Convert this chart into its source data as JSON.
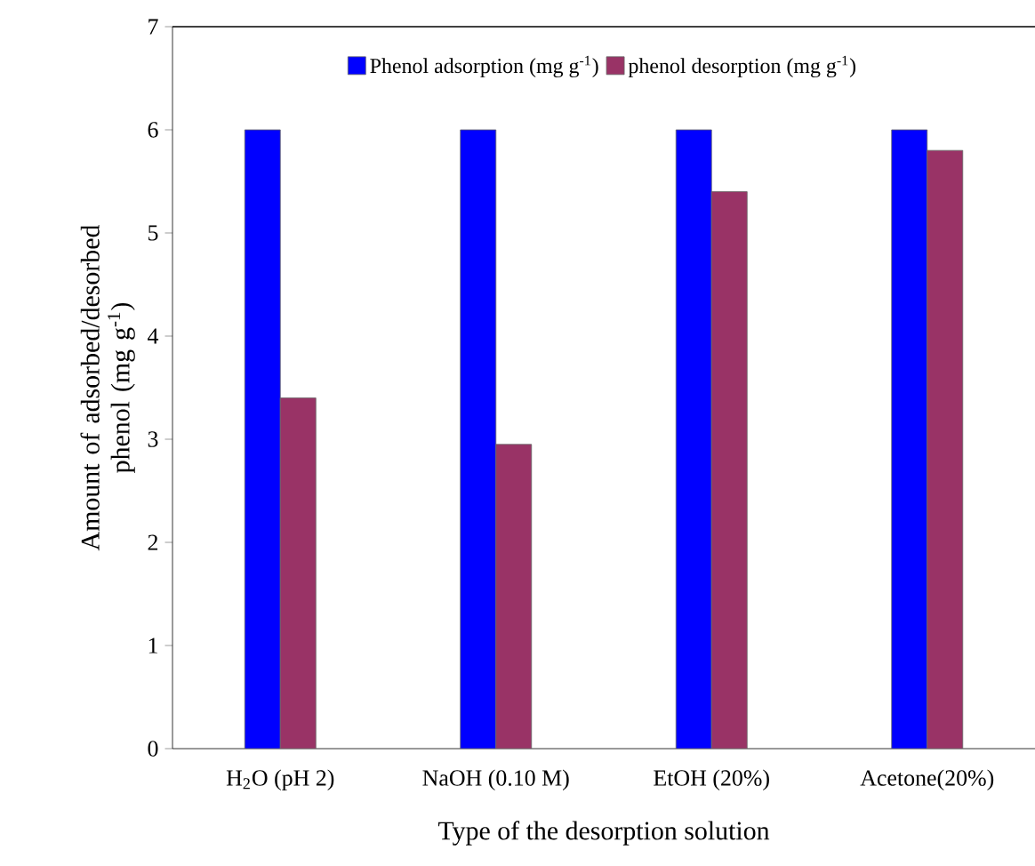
{
  "chart_data": {
    "type": "bar",
    "xlabel": "Type of the desorption solution",
    "ylabel": "Amount of adsorbed/desorbed phenol (mg g$^{-1}$)",
    "categories": [
      "H$_{2}$O (pH 2)",
      "NaOH (0.10 M)",
      "EtOH (20%)",
      "Acetone(20%)"
    ],
    "series": [
      {
        "name": "Phenol adsorption (mg g$^{-1}$)",
        "color": "#0000ff",
        "values": [
          6,
          6,
          6,
          6
        ]
      },
      {
        "name": "phenol desorption (mg g$^{-1}$)",
        "color": "#993366",
        "values": [
          3.4,
          2.95,
          5.4,
          5.8
        ]
      }
    ],
    "ylim": [
      0,
      7
    ],
    "yticks": [
      0,
      1,
      2,
      3,
      4,
      5,
      6,
      7
    ],
    "legend": "top",
    "grid": false
  }
}
